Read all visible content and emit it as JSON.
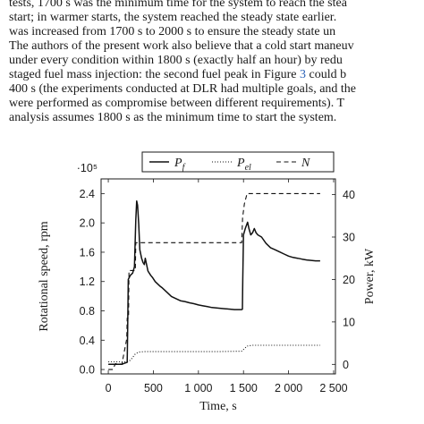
{
  "paragraph": {
    "lines": [
      "tests, 1700 s was the minimum time for the system to reach the stea",
      "start; in warmer starts, the system reached the steady state earlier.",
      "was increased from 1700 s to 2000 s to ensure the steady state un",
      "The authors of the present work also believe that a cold start maneuv",
      "under every condition within 1800 s (exactly half an hour) by redu",
      "staged fuel mass injection: the second fuel peak in Figure ",
      "400 s (the experiments conducted at DLR had multiple goals, and the",
      "were performed as compromise between different requirements). T",
      "analysis assumes 1800 s as the minimum time to start the system."
    ],
    "figure_ref": "3",
    "line6_tail": " could b"
  },
  "chart_data": {
    "type": "line",
    "x": {
      "label": "Time, s",
      "ticks": [
        "0",
        "500",
        "1 000",
        "1 500",
        "2 000",
        "2 500"
      ],
      "range": [
        -80,
        2520
      ]
    },
    "y_left": {
      "label": "Rotational speed, rpm",
      "multiplier": "·10⁵",
      "ticks": [
        "0.0",
        "0.4",
        "0.8",
        "1.2",
        "1.6",
        "2.0",
        "2.4"
      ],
      "range": [
        -0.06,
        2.6
      ]
    },
    "y_right": {
      "label": "Power, kW",
      "ticks": [
        "0",
        "10",
        "20",
        "30",
        "40"
      ],
      "range": [
        -2.25,
        43.7
      ]
    },
    "legend": [
      {
        "name": "P_f",
        "label": "P",
        "sub": "f",
        "style": "solid"
      },
      {
        "name": "P_el",
        "label": "P",
        "sub": "el",
        "style": "dotted"
      },
      {
        "name": "N",
        "label": "N",
        "sub": "",
        "style": "dashed"
      }
    ],
    "series": [
      {
        "name": "P_f",
        "axis": "right",
        "style": "solid",
        "points": [
          [
            0,
            0
          ],
          [
            150,
            0
          ],
          [
            170,
            0.2
          ],
          [
            210,
            0.5
          ],
          [
            215,
            8
          ],
          [
            222,
            20
          ],
          [
            245,
            21
          ],
          [
            270,
            21.5
          ],
          [
            290,
            23
          ],
          [
            305,
            34
          ],
          [
            315,
            38.5
          ],
          [
            325,
            37.5
          ],
          [
            338,
            33
          ],
          [
            350,
            27
          ],
          [
            370,
            25
          ],
          [
            385,
            24
          ],
          [
            400,
            23.5
          ],
          [
            410,
            25
          ],
          [
            420,
            24
          ],
          [
            440,
            22
          ],
          [
            470,
            21
          ],
          [
            490,
            20.5
          ],
          [
            520,
            19.5
          ],
          [
            545,
            19
          ],
          [
            570,
            18.5
          ],
          [
            600,
            18
          ],
          [
            650,
            17
          ],
          [
            700,
            16
          ],
          [
            750,
            15.5
          ],
          [
            800,
            15
          ],
          [
            850,
            14.8
          ],
          [
            900,
            14.5
          ],
          [
            950,
            14.3
          ],
          [
            1000,
            14
          ],
          [
            1050,
            13.8
          ],
          [
            1100,
            13.6
          ],
          [
            1150,
            13.4
          ],
          [
            1200,
            13.3
          ],
          [
            1250,
            13.2
          ],
          [
            1300,
            13.1
          ],
          [
            1350,
            13
          ],
          [
            1400,
            12.9
          ],
          [
            1450,
            12.9
          ],
          [
            1480,
            12.9
          ],
          [
            1488,
            13
          ],
          [
            1492,
            20
          ],
          [
            1500,
            30.5
          ],
          [
            1520,
            32
          ],
          [
            1545,
            33.5
          ],
          [
            1560,
            32
          ],
          [
            1580,
            30.5
          ],
          [
            1600,
            31
          ],
          [
            1620,
            32
          ],
          [
            1640,
            31
          ],
          [
            1660,
            30.5
          ],
          [
            1700,
            30
          ],
          [
            1750,
            28.5
          ],
          [
            1800,
            27.5
          ],
          [
            1850,
            27
          ],
          [
            1900,
            26.5
          ],
          [
            1950,
            26
          ],
          [
            2000,
            25.5
          ],
          [
            2050,
            25.2
          ],
          [
            2100,
            25
          ],
          [
            2150,
            24.8
          ],
          [
            2200,
            24.6
          ],
          [
            2250,
            24.5
          ],
          [
            2300,
            24.4
          ],
          [
            2350,
            24.4
          ]
        ]
      },
      {
        "name": "P_el",
        "axis": "right",
        "style": "dotted",
        "points": [
          [
            0,
            0.6
          ],
          [
            150,
            0.6
          ],
          [
            215,
            0.6
          ],
          [
            245,
            1
          ],
          [
            270,
            1.6
          ],
          [
            300,
            2.5
          ],
          [
            340,
            2.9
          ],
          [
            400,
            3
          ],
          [
            800,
            3
          ],
          [
            1200,
            3
          ],
          [
            1480,
            3.1
          ],
          [
            1510,
            3.7
          ],
          [
            1540,
            4.3
          ],
          [
            1600,
            4.5
          ],
          [
            2000,
            4.5
          ],
          [
            2350,
            4.5
          ]
        ]
      },
      {
        "name": "N",
        "axis": "left",
        "style": "dashed",
        "points": [
          [
            0,
            0
          ],
          [
            50,
            0
          ],
          [
            80,
            0.08
          ],
          [
            115,
            0.08
          ],
          [
            150,
            0.07
          ],
          [
            205,
            0.42
          ],
          [
            210,
            0.7
          ],
          [
            225,
            0.7
          ],
          [
            230,
            1.35
          ],
          [
            300,
            1.35
          ],
          [
            305,
            1.73
          ],
          [
            460,
            1.73
          ],
          [
            760,
            1.73
          ],
          [
            1080,
            1.73
          ],
          [
            1430,
            1.73
          ],
          [
            1460,
            1.73
          ],
          [
            1480,
            1.73
          ],
          [
            1490,
            2.07
          ],
          [
            1510,
            2.26
          ],
          [
            1540,
            2.4
          ],
          [
            1800,
            2.4
          ],
          [
            2350,
            2.4
          ]
        ]
      }
    ]
  }
}
